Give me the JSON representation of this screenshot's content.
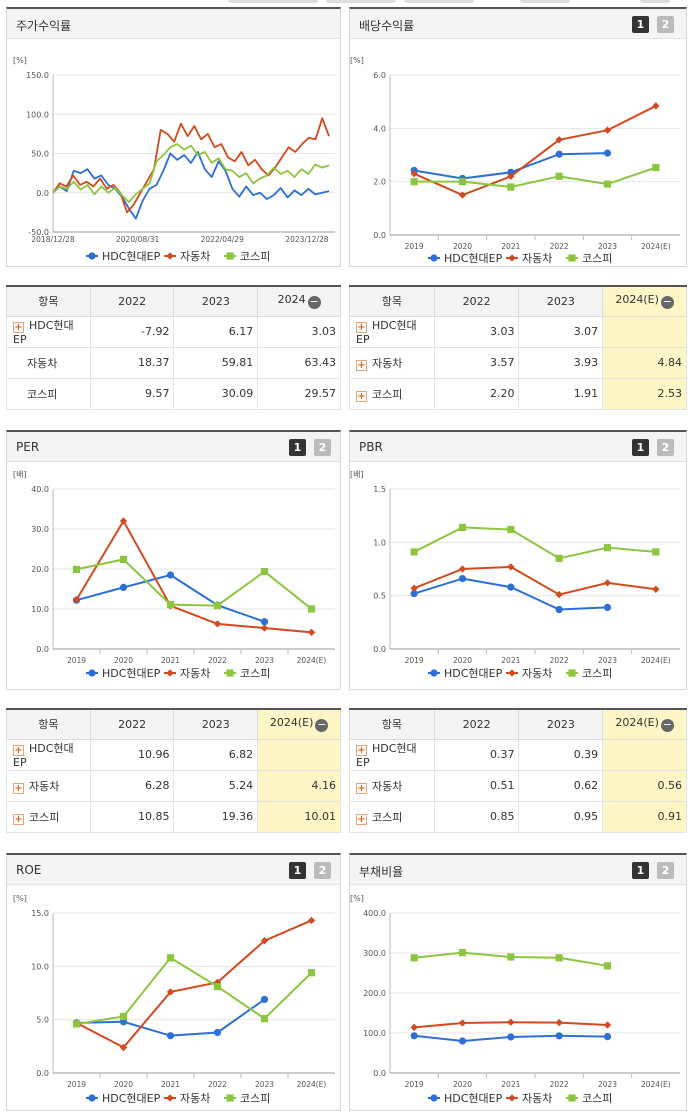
{
  "labels": {
    "pct": "[%]",
    "times": "[배]"
  },
  "btn": {
    "one": "1",
    "two": "2"
  },
  "colors": {
    "hdc": "#2c6fd8",
    "car": "#d24a1e",
    "kospi": "#8cc63f"
  },
  "legend": {
    "hdc": "HDC현대EP",
    "car": "자동차",
    "kospi": "코스피"
  },
  "panels": {
    "stock": {
      "title": "주가수익률"
    },
    "div": {
      "title": "배당수익률"
    },
    "per": {
      "title": "PER"
    },
    "pbr": {
      "title": "PBR"
    },
    "roe": {
      "title": "ROE"
    },
    "debt": {
      "title": "부채비율"
    }
  },
  "tables": {
    "stock": {
      "head": [
        "항목",
        "2022",
        "2023",
        "2024"
      ],
      "rows": [
        {
          "name": "HDC현대EP",
          "plus": true,
          "vals": [
            "-7.92",
            "6.17",
            "3.03"
          ]
        },
        {
          "name": "자동차",
          "plus": false,
          "vals": [
            "18.37",
            "59.81",
            "63.43"
          ]
        },
        {
          "name": "코스피",
          "plus": false,
          "vals": [
            "9.57",
            "30.09",
            "29.57"
          ]
        }
      ]
    },
    "div": {
      "head": [
        "항목",
        "2022",
        "2023",
        "2024(E)"
      ],
      "rows": [
        {
          "name": "HDC현대EP",
          "plus": true,
          "vals": [
            "3.03",
            "3.07",
            ""
          ]
        },
        {
          "name": "자동차",
          "plus": true,
          "vals": [
            "3.57",
            "3.93",
            "4.84"
          ]
        },
        {
          "name": "코스피",
          "plus": true,
          "vals": [
            "2.20",
            "1.91",
            "2.53"
          ]
        }
      ]
    },
    "per": {
      "head": [
        "항목",
        "2022",
        "2023",
        "2024(E)"
      ],
      "rows": [
        {
          "name": "HDC현대EP",
          "plus": true,
          "vals": [
            "10.96",
            "6.82",
            ""
          ]
        },
        {
          "name": "자동차",
          "plus": true,
          "vals": [
            "6.28",
            "5.24",
            "4.16"
          ]
        },
        {
          "name": "코스피",
          "plus": true,
          "vals": [
            "10.85",
            "19.36",
            "10.01"
          ]
        }
      ]
    },
    "pbr": {
      "head": [
        "항목",
        "2022",
        "2023",
        "2024(E)"
      ],
      "rows": [
        {
          "name": "HDC현대EP",
          "plus": true,
          "vals": [
            "0.37",
            "0.39",
            ""
          ]
        },
        {
          "name": "자동차",
          "plus": true,
          "vals": [
            "0.51",
            "0.62",
            "0.56"
          ]
        },
        {
          "name": "코스피",
          "plus": true,
          "vals": [
            "0.85",
            "0.95",
            "0.91"
          ]
        }
      ]
    }
  },
  "chart_data": [
    {
      "id": "stock",
      "type": "line",
      "title": "주가수익률",
      "ylabel": "[%]",
      "ylim": [
        -50,
        150
      ],
      "yticks": [
        "150.0",
        "100.0",
        "50.0",
        "0.0",
        "-50.0"
      ],
      "xticks": [
        "2018/12/28",
        "2020/08/31",
        "2022/04/29",
        "2023/12/28"
      ],
      "series": [
        {
          "name": "HDC현대EP",
          "values": [
            0,
            8,
            2,
            28,
            25,
            30,
            18,
            22,
            10,
            5,
            -5,
            -20,
            -33,
            -10,
            5,
            10,
            28,
            50,
            42,
            48,
            38,
            52,
            30,
            20,
            40,
            28,
            5,
            -5,
            8,
            -3,
            0,
            -8,
            -3,
            6,
            -6,
            3,
            -3,
            5,
            -2,
            0,
            2
          ]
        },
        {
          "name": "자동차",
          "values": [
            0,
            12,
            8,
            22,
            10,
            14,
            8,
            18,
            5,
            10,
            0,
            -25,
            -15,
            0,
            15,
            30,
            80,
            75,
            65,
            88,
            72,
            85,
            68,
            75,
            58,
            62,
            45,
            40,
            52,
            35,
            42,
            30,
            22,
            32,
            45,
            58,
            52,
            62,
            70,
            68,
            95,
            72
          ]
        },
        {
          "name": "코스피",
          "values": [
            0,
            8,
            5,
            14,
            4,
            10,
            -2,
            8,
            0,
            6,
            -3,
            -12,
            -2,
            5,
            12,
            40,
            48,
            58,
            62,
            55,
            60,
            48,
            52,
            38,
            44,
            30,
            28,
            20,
            25,
            12,
            18,
            22,
            32,
            24,
            28,
            20,
            30,
            24,
            36,
            32,
            35
          ]
        }
      ]
    },
    {
      "id": "div",
      "type": "line",
      "title": "배당수익률",
      "ylabel": "[%]",
      "ylim": [
        0,
        6
      ],
      "yticks": [
        "6.0",
        "4.0",
        "2.0",
        "0.0"
      ],
      "categories": [
        "2019",
        "2020",
        "2021",
        "2022",
        "2023",
        "2024(E)"
      ],
      "series": [
        {
          "name": "HDC현대EP",
          "values": [
            2.42,
            2.12,
            2.35,
            3.03,
            3.07,
            null
          ]
        },
        {
          "name": "자동차",
          "values": [
            2.3,
            1.5,
            2.2,
            3.57,
            3.93,
            4.84
          ]
        },
        {
          "name": "코스피",
          "values": [
            2.0,
            2.0,
            1.8,
            2.2,
            1.91,
            2.53
          ]
        }
      ]
    },
    {
      "id": "per",
      "type": "line",
      "title": "PER",
      "ylabel": "[배]",
      "ylim": [
        0,
        40
      ],
      "yticks": [
        "40.0",
        "30.0",
        "20.0",
        "10.0",
        "0.0"
      ],
      "categories": [
        "2019",
        "2020",
        "2021",
        "2022",
        "2023",
        "2024(E)"
      ],
      "series": [
        {
          "name": "HDC현대EP",
          "values": [
            12.2,
            15.4,
            18.5,
            10.96,
            6.82,
            null
          ]
        },
        {
          "name": "자동차",
          "values": [
            12.3,
            32.0,
            10.8,
            6.28,
            5.24,
            4.16
          ]
        },
        {
          "name": "코스피",
          "values": [
            19.9,
            22.4,
            11.1,
            10.85,
            19.36,
            10.01
          ]
        }
      ]
    },
    {
      "id": "pbr",
      "type": "line",
      "title": "PBR",
      "ylabel": "[배]",
      "ylim": [
        0,
        1.5
      ],
      "yticks": [
        "1.5",
        "1.0",
        "0.5",
        "0.0"
      ],
      "categories": [
        "2019",
        "2020",
        "2021",
        "2022",
        "2023",
        "2024(E)"
      ],
      "series": [
        {
          "name": "HDC현대EP",
          "values": [
            0.52,
            0.66,
            0.58,
            0.37,
            0.39,
            null
          ]
        },
        {
          "name": "자동차",
          "values": [
            0.57,
            0.75,
            0.77,
            0.51,
            0.62,
            0.56
          ]
        },
        {
          "name": "코스피",
          "values": [
            0.91,
            1.14,
            1.12,
            0.85,
            0.95,
            0.91
          ]
        }
      ]
    },
    {
      "id": "roe",
      "type": "line",
      "title": "ROE",
      "ylabel": "[%]",
      "ylim": [
        0,
        15
      ],
      "yticks": [
        "15.0",
        "10.0",
        "5.0",
        "0.0"
      ],
      "categories": [
        "2019",
        "2020",
        "2021",
        "2022",
        "2023",
        "2024(E)"
      ],
      "series": [
        {
          "name": "HDC현대EP",
          "values": [
            4.7,
            4.8,
            3.5,
            3.8,
            6.9,
            null
          ]
        },
        {
          "name": "자동차",
          "values": [
            4.7,
            2.4,
            7.6,
            8.5,
            12.4,
            14.3
          ]
        },
        {
          "name": "코스피",
          "values": [
            4.6,
            5.3,
            10.8,
            8.1,
            5.1,
            9.4
          ]
        }
      ]
    },
    {
      "id": "debt",
      "type": "line",
      "title": "부채비율",
      "ylabel": "[%]",
      "ylim": [
        0,
        400
      ],
      "yticks": [
        "400.0",
        "300.0",
        "200.0",
        "100.0",
        "0.0"
      ],
      "categories": [
        "2019",
        "2020",
        "2021",
        "2022",
        "2023",
        "2024(E)"
      ],
      "series": [
        {
          "name": "HDC현대EP",
          "values": [
            93,
            80,
            90,
            93,
            91,
            null
          ]
        },
        {
          "name": "자동차",
          "values": [
            114,
            125,
            127,
            126,
            120,
            null
          ]
        },
        {
          "name": "코스피",
          "values": [
            288,
            301,
            290,
            288,
            268,
            null
          ]
        }
      ]
    }
  ]
}
